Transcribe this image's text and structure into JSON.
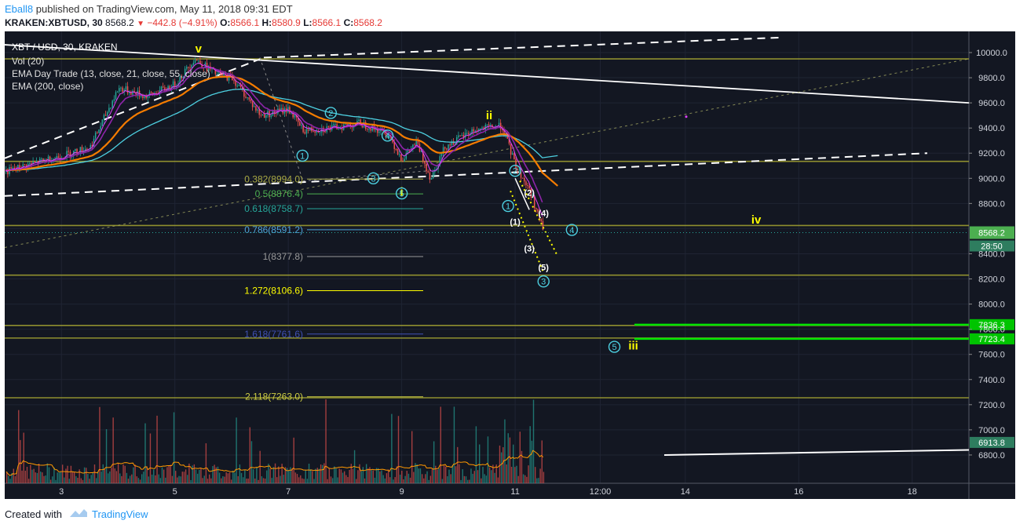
{
  "header": {
    "author": "Eball8",
    "published_text": " published on TradingView.com, May 11, 2018 09:31 EDT",
    "symbol": "KRAKEN:XBTUSD, 30",
    "last": "8568.2",
    "change": "−442.8 (−4.91%)",
    "open_label": "O:",
    "open": "8566.1",
    "high_label": "H:",
    "high": "8580.9",
    "low_label": "L:",
    "low": "8566.1",
    "close_label": "C:",
    "close": "8568.2"
  },
  "legend": {
    "title": "XBT / USD, 30, KRAKEN",
    "items": [
      "Vol (20)",
      "EMA Day Trade (13, close, 21, close, 55, close)",
      "EMA (200, close)"
    ]
  },
  "footer": {
    "created": "Created with",
    "brand": "TradingView"
  },
  "colors": {
    "background": "#131722",
    "candle_up": "#26a69a",
    "candle_down": "#ef5350",
    "ema13": "#8e24aa",
    "ema21": "#f57c00",
    "ema200": "#4dd0e1",
    "fib_yellow": "#ffff00",
    "level_olive": "#a5a532",
    "target_green": "#00e600",
    "price_tag": "#4caf50"
  },
  "chart_data": {
    "type": "candlestick",
    "title": "XBT / USD, 30, KRAKEN",
    "ylim": [
      6800,
      10200
    ],
    "x_range": [
      "2018-05-02",
      "2018-05-19"
    ],
    "y_ticks": [
      "10000.0",
      "9800.0",
      "9600.0",
      "9400.0",
      "9200.0",
      "9000.0",
      "8800.0",
      "8600.0",
      "8400.0",
      "8200.0",
      "8000.0",
      "7800.0",
      "7600.0",
      "7400.0",
      "7200.0",
      "7000.0",
      "6800.0"
    ],
    "x_ticks": [
      "3",
      "5",
      "7",
      "9",
      "11",
      "12:00",
      "14",
      "16",
      "18"
    ],
    "price_path": [
      {
        "t": "2018-05-02 00:00",
        "p": 9050
      },
      {
        "t": "2018-05-02 12:00",
        "p": 9120
      },
      {
        "t": "2018-05-03 00:00",
        "p": 9180
      },
      {
        "t": "2018-05-03 12:00",
        "p": 9250
      },
      {
        "t": "2018-05-04 00:00",
        "p": 9720
      },
      {
        "t": "2018-05-04 12:00",
        "p": 9650
      },
      {
        "t": "2018-05-05 00:00",
        "p": 9750
      },
      {
        "t": "2018-05-05 08:00",
        "p": 9950
      },
      {
        "t": "2018-05-05 18:00",
        "p": 9820
      },
      {
        "t": "2018-05-06 00:00",
        "p": 9800
      },
      {
        "t": "2018-05-06 12:00",
        "p": 9500
      },
      {
        "t": "2018-05-07 00:00",
        "p": 9550
      },
      {
        "t": "2018-05-07 06:00",
        "p": 9380
      },
      {
        "t": "2018-05-07 18:00",
        "p": 9400
      },
      {
        "t": "2018-05-08 06:00",
        "p": 9440
      },
      {
        "t": "2018-05-08 18:00",
        "p": 9350
      },
      {
        "t": "2018-05-09 00:00",
        "p": 9150
      },
      {
        "t": "2018-05-09 06:00",
        "p": 9290
      },
      {
        "t": "2018-05-09 12:00",
        "p": 9000
      },
      {
        "t": "2018-05-09 18:00",
        "p": 9250
      },
      {
        "t": "2018-05-10 06:00",
        "p": 9380
      },
      {
        "t": "2018-05-10 18:00",
        "p": 9420
      },
      {
        "t": "2018-05-11 00:00",
        "p": 9100
      },
      {
        "t": "2018-05-11 06:00",
        "p": 8900
      },
      {
        "t": "2018-05-11 12:00",
        "p": 8568.2
      }
    ],
    "volume_levels": [
      "6913.8"
    ],
    "fib_levels": [
      {
        "label": "0.382(8994.0)",
        "value": 8994.0,
        "color": "#aaaa44"
      },
      {
        "label": "0.5(8876.4)",
        "value": 8876.4,
        "color": "#4caf50"
      },
      {
        "label": "0.618(8758.7)",
        "value": 8758.7,
        "color": "#26a69a"
      },
      {
        "label": "0.786(8591.2)",
        "value": 8591.2,
        "color": "#4fa3d9"
      },
      {
        "label": "1(8377.8)",
        "value": 8377.8,
        "color": "#999999"
      },
      {
        "label": "1.272(8106.6)",
        "value": 8106.6,
        "color": "#ffff00"
      },
      {
        "label": "1.618(7761.6)",
        "value": 7761.6,
        "color": "#3f51b5"
      },
      {
        "label": "2.118(7263.0)",
        "value": 7263.0,
        "color": "#cccc44"
      }
    ],
    "horizontal_levels": [
      9950,
      9135,
      8625,
      8230,
      7830,
      7730,
      7255
    ],
    "target_levels": [
      {
        "label": "7836.3",
        "value": 7836.3
      },
      {
        "label": "7723.4",
        "value": 7723.4
      }
    ],
    "price_label": {
      "value": "8568.2",
      "countdown": "28:50"
    },
    "wave_labels": {
      "yellow": [
        {
          "t": "v",
          "x": "2018-05-05 10:00",
          "y": 10000
        },
        {
          "t": "ii",
          "x": "2018-05-10 13:00",
          "y": 9470
        },
        {
          "t": "i",
          "x": "2018-05-09 00:00",
          "y": 8860
        },
        {
          "t": "iv",
          "x": "2018-05-15 06:00",
          "y": 8640
        },
        {
          "t": "iii",
          "x": "2018-05-13 02:00",
          "y": 7640
        }
      ],
      "cyan_circled": [
        {
          "t": "1",
          "x": "2018-05-07 06:00",
          "y": 9180
        },
        {
          "t": "2",
          "x": "2018-05-07 18:00",
          "y": 9520
        },
        {
          "t": "3",
          "x": "2018-05-08 12:00",
          "y": 9000
        },
        {
          "t": "4",
          "x": "2018-05-08 18:00",
          "y": 9340
        },
        {
          "t": "5",
          "x": "2018-05-09 00:00",
          "y": 8880
        },
        {
          "t": "1",
          "x": "2018-05-10 21:00",
          "y": 8780
        },
        {
          "t": "2",
          "x": "2018-05-11 00:00",
          "y": 9060
        },
        {
          "t": "3",
          "x": "2018-05-11 12:00",
          "y": 8180
        },
        {
          "t": "4",
          "x": "2018-05-12 00:00",
          "y": 8590
        },
        {
          "t": "5",
          "x": "2018-05-12 18:00",
          "y": 7660
        }
      ],
      "white_paren": [
        {
          "t": "(1)",
          "x": "2018-05-11 00:00",
          "y": 8630
        },
        {
          "t": "(2)",
          "x": "2018-05-11 06:00",
          "y": 8860
        },
        {
          "t": "(3)",
          "x": "2018-05-11 06:00",
          "y": 8420
        },
        {
          "t": "(4)",
          "x": "2018-05-11 12:00",
          "y": 8700
        },
        {
          "t": "(5)",
          "x": "2018-05-11 12:00",
          "y": 8270
        }
      ]
    }
  }
}
